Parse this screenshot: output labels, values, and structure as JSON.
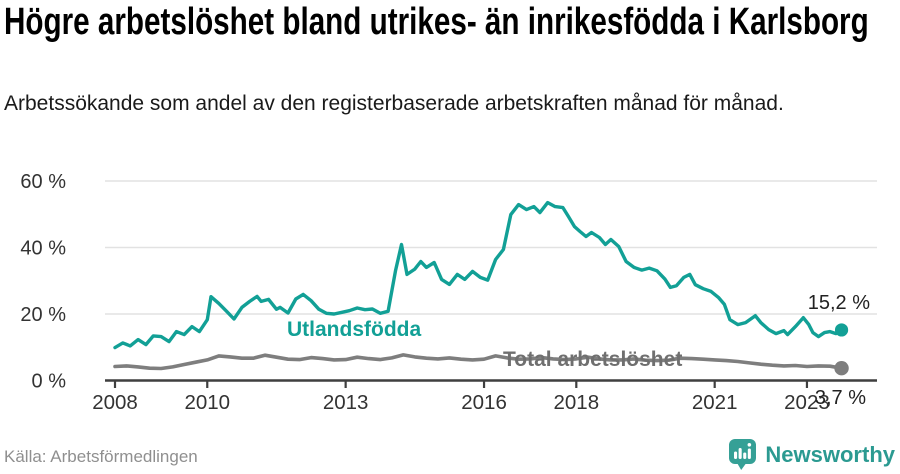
{
  "header": {
    "title": "Högre arbetslöshet bland utrikes- än inrikesfödda i Karlsborg",
    "subtitle": "Arbetssökande som andel av den registerbaserade arbetskraften månad för månad."
  },
  "chart_data": {
    "type": "line",
    "title": "Högre arbetslöshet bland utrikes- än inrikesfödda i Karlsborg",
    "xlabel": "",
    "ylabel": "",
    "unit": "%",
    "grid": true,
    "ylim": [
      0,
      60
    ],
    "xlim": [
      2007.78,
      2024.55
    ],
    "y_ticks": {
      "values": [
        0,
        20,
        40,
        60
      ],
      "labels": [
        "0 %",
        "20 %",
        "40 %",
        "60 %"
      ]
    },
    "x_ticks": {
      "values": [
        2008,
        2010,
        2013,
        2016,
        2018,
        2021,
        2023
      ],
      "labels": [
        "2008",
        "2010",
        "2013",
        "2016",
        "2018",
        "2021",
        "2023"
      ]
    },
    "colors": {
      "grid": "#e2e2e2",
      "axis": "#3f3f3f",
      "tick_text": "#333333",
      "value_label": "#222222"
    },
    "series": [
      {
        "name": "Utlandsfödda",
        "color": "#12a096",
        "label_color": "#12a096",
        "end_label": "15,2 %",
        "end_value": 15.2,
        "points": [
          [
            2008.0,
            9.9
          ],
          [
            2008.17,
            11.3
          ],
          [
            2008.33,
            10.4
          ],
          [
            2008.5,
            12.3
          ],
          [
            2008.67,
            10.8
          ],
          [
            2008.83,
            13.4
          ],
          [
            2009.0,
            13.2
          ],
          [
            2009.17,
            11.7
          ],
          [
            2009.33,
            14.7
          ],
          [
            2009.5,
            13.8
          ],
          [
            2009.67,
            16.2
          ],
          [
            2009.83,
            14.7
          ],
          [
            2010.0,
            18.3
          ],
          [
            2010.08,
            25.2
          ],
          [
            2010.25,
            23.2
          ],
          [
            2010.42,
            20.8
          ],
          [
            2010.58,
            18.5
          ],
          [
            2010.75,
            22.0
          ],
          [
            2010.92,
            23.8
          ],
          [
            2011.08,
            25.3
          ],
          [
            2011.17,
            23.8
          ],
          [
            2011.33,
            24.4
          ],
          [
            2011.5,
            21.4
          ],
          [
            2011.58,
            22.0
          ],
          [
            2011.75,
            20.3
          ],
          [
            2011.92,
            24.5
          ],
          [
            2012.08,
            25.9
          ],
          [
            2012.25,
            24.0
          ],
          [
            2012.42,
            21.4
          ],
          [
            2012.58,
            20.2
          ],
          [
            2012.75,
            20.0
          ],
          [
            2012.92,
            20.5
          ],
          [
            2013.08,
            21.0
          ],
          [
            2013.25,
            21.8
          ],
          [
            2013.42,
            21.3
          ],
          [
            2013.58,
            21.5
          ],
          [
            2013.75,
            20.2
          ],
          [
            2013.92,
            20.8
          ],
          [
            2014.08,
            33.0
          ],
          [
            2014.21,
            40.9
          ],
          [
            2014.33,
            31.9
          ],
          [
            2014.5,
            33.5
          ],
          [
            2014.63,
            35.8
          ],
          [
            2014.75,
            34.0
          ],
          [
            2014.92,
            35.5
          ],
          [
            2015.08,
            30.4
          ],
          [
            2015.25,
            28.9
          ],
          [
            2015.42,
            31.9
          ],
          [
            2015.58,
            30.4
          ],
          [
            2015.75,
            32.8
          ],
          [
            2015.92,
            31.0
          ],
          [
            2016.08,
            30.2
          ],
          [
            2016.25,
            36.4
          ],
          [
            2016.42,
            39.4
          ],
          [
            2016.58,
            49.9
          ],
          [
            2016.75,
            52.9
          ],
          [
            2016.92,
            51.4
          ],
          [
            2017.08,
            52.3
          ],
          [
            2017.21,
            50.5
          ],
          [
            2017.38,
            53.5
          ],
          [
            2017.54,
            52.3
          ],
          [
            2017.71,
            52.0
          ],
          [
            2017.83,
            49.3
          ],
          [
            2017.96,
            46.3
          ],
          [
            2018.08,
            44.8
          ],
          [
            2018.21,
            43.3
          ],
          [
            2018.33,
            44.5
          ],
          [
            2018.5,
            43.0
          ],
          [
            2018.63,
            40.9
          ],
          [
            2018.75,
            42.4
          ],
          [
            2018.92,
            40.3
          ],
          [
            2019.08,
            35.8
          ],
          [
            2019.25,
            34.0
          ],
          [
            2019.42,
            33.2
          ],
          [
            2019.58,
            33.8
          ],
          [
            2019.75,
            33.0
          ],
          [
            2019.92,
            30.5
          ],
          [
            2020.04,
            28.0
          ],
          [
            2020.17,
            28.5
          ],
          [
            2020.33,
            31.0
          ],
          [
            2020.46,
            31.9
          ],
          [
            2020.58,
            28.8
          ],
          [
            2020.75,
            27.6
          ],
          [
            2020.92,
            26.8
          ],
          [
            2021.08,
            25.0
          ],
          [
            2021.21,
            22.9
          ],
          [
            2021.33,
            18.3
          ],
          [
            2021.5,
            16.8
          ],
          [
            2021.67,
            17.4
          ],
          [
            2021.88,
            19.5
          ],
          [
            2022.0,
            17.4
          ],
          [
            2022.17,
            15.3
          ],
          [
            2022.33,
            14.1
          ],
          [
            2022.5,
            15.0
          ],
          [
            2022.58,
            13.8
          ],
          [
            2022.75,
            16.2
          ],
          [
            2022.92,
            18.9
          ],
          [
            2023.04,
            16.8
          ],
          [
            2023.13,
            14.4
          ],
          [
            2023.25,
            13.2
          ],
          [
            2023.38,
            14.4
          ],
          [
            2023.5,
            14.7
          ],
          [
            2023.63,
            14.1
          ],
          [
            2023.75,
            15.2
          ]
        ]
      },
      {
        "name": "Total arbetslöshet",
        "color": "#7e7e7e",
        "label_color": "#6f6f6f",
        "end_label": "3,7 %",
        "end_value": 3.7,
        "points": [
          [
            2008.0,
            4.2
          ],
          [
            2008.25,
            4.4
          ],
          [
            2008.5,
            4.1
          ],
          [
            2008.75,
            3.7
          ],
          [
            2009.0,
            3.6
          ],
          [
            2009.25,
            4.1
          ],
          [
            2009.5,
            4.8
          ],
          [
            2009.75,
            5.5
          ],
          [
            2010.0,
            6.2
          ],
          [
            2010.25,
            7.4
          ],
          [
            2010.5,
            7.1
          ],
          [
            2010.75,
            6.7
          ],
          [
            2011.0,
            6.7
          ],
          [
            2011.25,
            7.6
          ],
          [
            2011.5,
            7.0
          ],
          [
            2011.75,
            6.4
          ],
          [
            2012.0,
            6.3
          ],
          [
            2012.25,
            6.9
          ],
          [
            2012.5,
            6.6
          ],
          [
            2012.75,
            6.2
          ],
          [
            2013.0,
            6.3
          ],
          [
            2013.25,
            7.0
          ],
          [
            2013.5,
            6.6
          ],
          [
            2013.75,
            6.3
          ],
          [
            2014.0,
            6.8
          ],
          [
            2014.25,
            7.7
          ],
          [
            2014.5,
            7.1
          ],
          [
            2014.75,
            6.7
          ],
          [
            2015.0,
            6.5
          ],
          [
            2015.25,
            6.8
          ],
          [
            2015.5,
            6.4
          ],
          [
            2015.75,
            6.2
          ],
          [
            2016.0,
            6.4
          ],
          [
            2016.25,
            7.4
          ],
          [
            2016.5,
            6.8
          ],
          [
            2016.75,
            6.4
          ],
          [
            2017.0,
            6.5
          ],
          [
            2017.25,
            6.9
          ],
          [
            2017.5,
            6.5
          ],
          [
            2017.75,
            6.3
          ],
          [
            2018.0,
            6.5
          ],
          [
            2018.25,
            7.0
          ],
          [
            2018.5,
            6.5
          ],
          [
            2018.75,
            6.2
          ],
          [
            2019.0,
            6.2
          ],
          [
            2019.25,
            6.5
          ],
          [
            2019.5,
            6.1
          ],
          [
            2019.75,
            6.0
          ],
          [
            2020.0,
            6.1
          ],
          [
            2020.25,
            6.7
          ],
          [
            2020.5,
            6.6
          ],
          [
            2020.75,
            6.4
          ],
          [
            2021.0,
            6.2
          ],
          [
            2021.25,
            6.0
          ],
          [
            2021.5,
            5.7
          ],
          [
            2021.75,
            5.3
          ],
          [
            2022.0,
            4.9
          ],
          [
            2022.25,
            4.6
          ],
          [
            2022.5,
            4.4
          ],
          [
            2022.75,
            4.5
          ],
          [
            2023.0,
            4.2
          ],
          [
            2023.25,
            4.4
          ],
          [
            2023.5,
            4.3
          ],
          [
            2023.75,
            3.7
          ]
        ]
      }
    ],
    "legend_position": "inline-labels"
  },
  "footer": {
    "source": "Källa: Arbetsförmedlingen",
    "brand": "Newsworthy",
    "brand_color": "#2b9a91",
    "brand_icon": "speech-bubble-bar-chart"
  }
}
